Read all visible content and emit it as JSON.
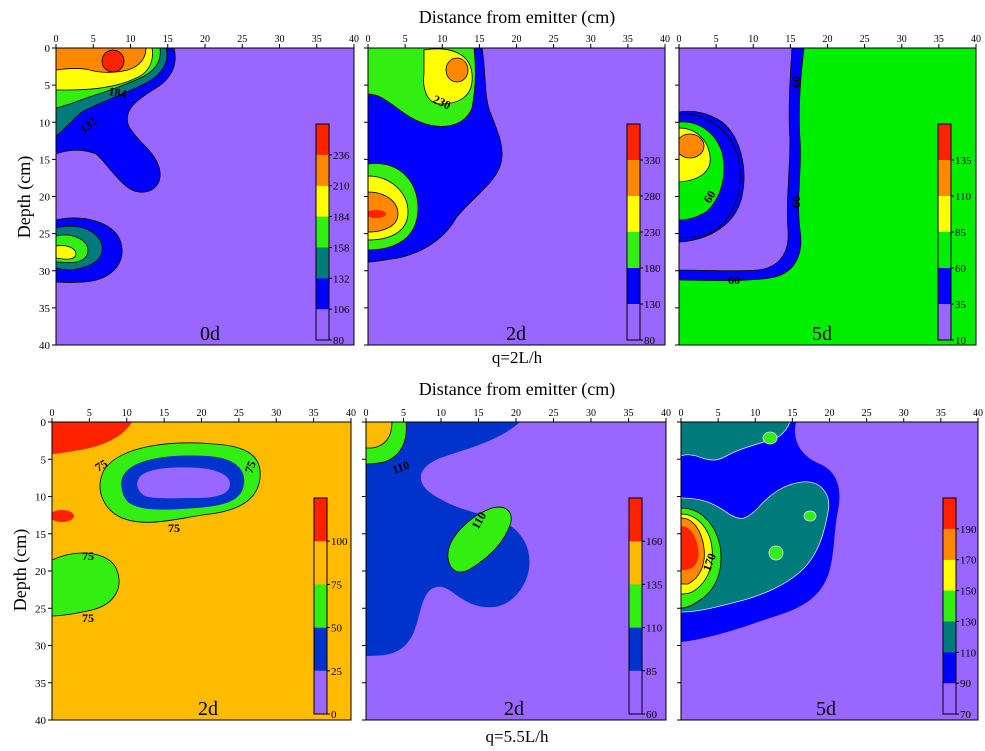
{
  "colors": {
    "violet": "#9966ff",
    "blue": "#0000ff",
    "dark_blue": "#0033cc",
    "teal": "#007b7b",
    "green": "#33ee11",
    "light_green": "#00ee00",
    "yellow": "#ffff00",
    "orange": "#ff8800",
    "amber": "#ffbb00",
    "red": "#ff2200"
  },
  "chart_data": [
    {
      "type": "heatmap",
      "group": "q=2L/h",
      "panel_label": "0d",
      "x_ticks": [
        "0",
        "5",
        "10",
        "15",
        "20",
        "25",
        "30",
        "35",
        "40"
      ],
      "y_ticks": [
        "0",
        "5",
        "10",
        "15",
        "20",
        "25",
        "30",
        "35",
        "40"
      ],
      "xlim": [
        0,
        40
      ],
      "ylim": [
        0,
        40
      ],
      "colorbar_ticks": [
        "80",
        "106",
        "132",
        "158",
        "184",
        "210",
        "236"
      ],
      "colorbar_colors": [
        "#9966ff",
        "#0000ff",
        "#007b7b",
        "#33ee11",
        "#ffff00",
        "#ff8800",
        "#ff2200"
      ],
      "contour_labels": [
        "184",
        "132"
      ]
    },
    {
      "type": "heatmap",
      "group": "q=2L/h",
      "panel_label": "2d",
      "x_ticks": [
        "0",
        "5",
        "10",
        "15",
        "20",
        "25",
        "30",
        "35",
        "40"
      ],
      "xlim": [
        0,
        40
      ],
      "ylim": [
        0,
        40
      ],
      "colorbar_ticks": [
        "80",
        "130",
        "180",
        "230",
        "280",
        "330"
      ],
      "colorbar_colors": [
        "#9966ff",
        "#0000ff",
        "#33ee11",
        "#ffff00",
        "#ff8800",
        "#ff2200"
      ],
      "contour_labels": [
        "230"
      ]
    },
    {
      "type": "heatmap",
      "group": "q=2L/h",
      "panel_label": "5d",
      "x_ticks": [
        "0",
        "5",
        "10",
        "15",
        "20",
        "25",
        "30",
        "35",
        "40"
      ],
      "xlim": [
        0,
        40
      ],
      "ylim": [
        0,
        40
      ],
      "colorbar_ticks": [
        "10",
        "35",
        "60",
        "85",
        "110",
        "135"
      ],
      "colorbar_colors": [
        "#9966ff",
        "#0000ff",
        "#00ee00",
        "#ffff00",
        "#ff8800",
        "#ff2200"
      ],
      "contour_labels": [
        "60",
        "60",
        "60",
        "60"
      ]
    },
    {
      "type": "heatmap",
      "group": "q=5.5L/h",
      "panel_label": "2d",
      "x_ticks": [
        "0",
        "5",
        "10",
        "15",
        "20",
        "25",
        "30",
        "35",
        "40"
      ],
      "y_ticks": [
        "0",
        "5",
        "10",
        "15",
        "20",
        "25",
        "30",
        "35",
        "40"
      ],
      "xlim": [
        0,
        40
      ],
      "ylim": [
        0,
        40
      ],
      "colorbar_ticks": [
        "0",
        "25",
        "50",
        "75",
        "100"
      ],
      "colorbar_colors": [
        "#9966ff",
        "#0033cc",
        "#33ee11",
        "#ffbb00",
        "#ff2200"
      ],
      "contour_labels": [
        "75",
        "75",
        "75",
        "75",
        "75",
        "75"
      ]
    },
    {
      "type": "heatmap",
      "group": "q=5.5L/h",
      "panel_label": "2d",
      "x_ticks": [
        "0",
        "5",
        "10",
        "15",
        "20",
        "25",
        "30",
        "35",
        "40"
      ],
      "xlim": [
        0,
        40
      ],
      "ylim": [
        0,
        40
      ],
      "colorbar_ticks": [
        "60",
        "85",
        "110",
        "135",
        "160"
      ],
      "colorbar_colors": [
        "#9966ff",
        "#0033cc",
        "#33ee11",
        "#ffbb00",
        "#ff2200"
      ],
      "contour_labels": [
        "110",
        "110"
      ]
    },
    {
      "type": "heatmap",
      "group": "q=5.5L/h",
      "panel_label": "5d",
      "x_ticks": [
        "0",
        "5",
        "10",
        "15",
        "20",
        "25",
        "30",
        "35",
        "40"
      ],
      "xlim": [
        0,
        40
      ],
      "ylim": [
        0,
        40
      ],
      "colorbar_ticks": [
        "70",
        "90",
        "110",
        "130",
        "150",
        "170",
        "190"
      ],
      "colorbar_colors": [
        "#9966ff",
        "#0000ff",
        "#007b7b",
        "#33ee11",
        "#ffff00",
        "#ff8800",
        "#ff2200"
      ],
      "contour_labels": [
        "170"
      ]
    }
  ],
  "titles": {
    "top_axis": "Distance from emitter (cm)",
    "bottom_axis": "Distance from emitter (cm)",
    "left_axis_top": "Depth (cm)",
    "left_axis_bottom": "Depth (cm)",
    "group_top": "q=2L/h",
    "group_bottom": "q=5.5L/h"
  }
}
